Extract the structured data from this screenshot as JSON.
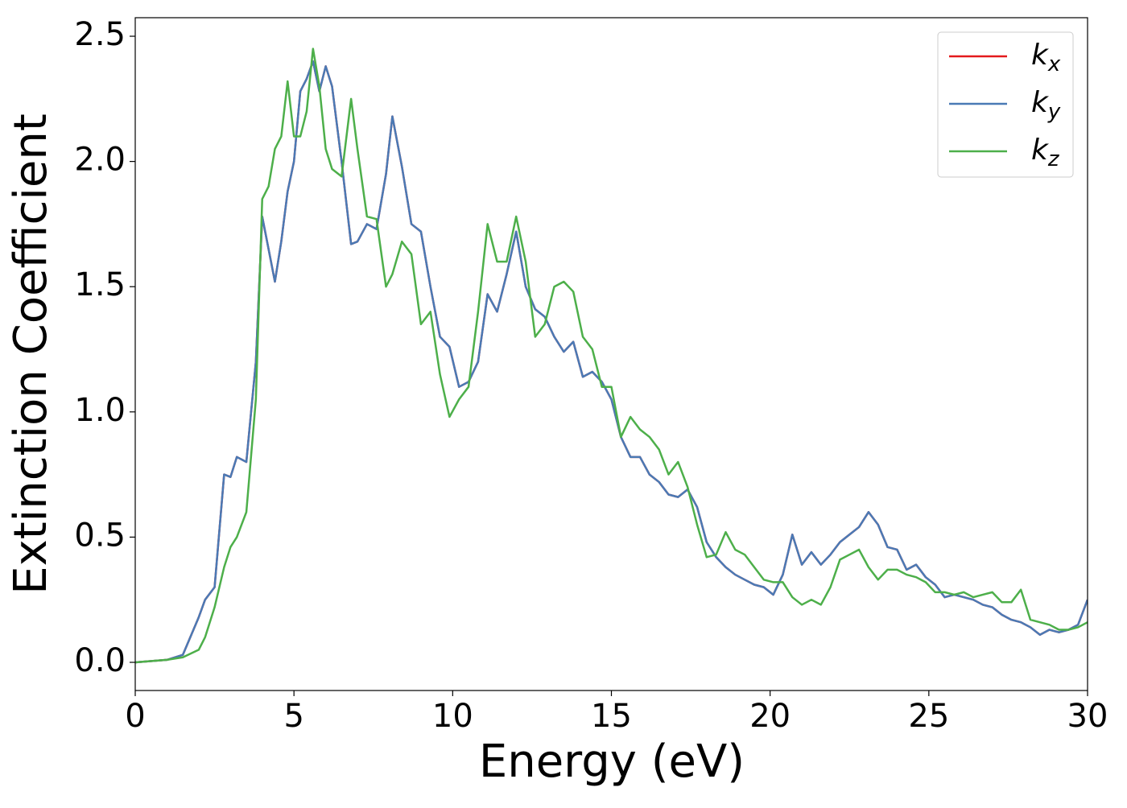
{
  "chart_data": {
    "type": "line",
    "x_label": "Energy (eV)",
    "y_label": "Extinction Coefficient",
    "x": [
      0,
      1,
      1.5,
      2,
      2.2,
      2.5,
      2.8,
      3,
      3.2,
      3.5,
      3.8,
      4,
      4.2,
      4.4,
      4.6,
      4.8,
      5,
      5.2,
      5.4,
      5.6,
      5.8,
      6,
      6.2,
      6.5,
      6.8,
      7,
      7.3,
      7.6,
      7.9,
      8.1,
      8.4,
      8.7,
      9,
      9.3,
      9.6,
      9.9,
      10.2,
      10.5,
      10.8,
      11.1,
      11.4,
      11.7,
      12,
      12.3,
      12.6,
      12.9,
      13.2,
      13.5,
      13.8,
      14.1,
      14.4,
      14.7,
      15,
      15.3,
      15.6,
      15.9,
      16.2,
      16.5,
      16.8,
      17.1,
      17.4,
      17.7,
      18,
      18.3,
      18.6,
      18.9,
      19.2,
      19.5,
      19.8,
      20.1,
      20.4,
      20.7,
      21,
      21.3,
      21.6,
      21.9,
      22.2,
      22.5,
      22.8,
      23.1,
      23.4,
      23.7,
      24,
      24.3,
      24.6,
      24.9,
      25.2,
      25.5,
      25.8,
      26.1,
      26.4,
      26.7,
      27,
      27.3,
      27.6,
      27.9,
      28.2,
      28.5,
      28.8,
      29.1,
      29.4,
      29.7,
      30
    ],
    "series": [
      {
        "name": "kx",
        "color": "#e41a1c",
        "values": [
          0,
          0.01,
          0.03,
          0.18,
          0.25,
          0.3,
          0.75,
          0.74,
          0.82,
          0.8,
          1.2,
          1.78,
          1.65,
          1.52,
          1.68,
          1.88,
          2.0,
          2.28,
          2.33,
          2.4,
          2.28,
          2.38,
          2.3,
          2.0,
          1.67,
          1.68,
          1.75,
          1.73,
          1.95,
          2.18,
          1.98,
          1.75,
          1.72,
          1.5,
          1.3,
          1.26,
          1.1,
          1.12,
          1.2,
          1.47,
          1.4,
          1.55,
          1.72,
          1.5,
          1.41,
          1.38,
          1.3,
          1.24,
          1.28,
          1.14,
          1.16,
          1.12,
          1.05,
          0.9,
          0.82,
          0.82,
          0.75,
          0.72,
          0.67,
          0.66,
          0.69,
          0.62,
          0.48,
          0.42,
          0.38,
          0.35,
          0.33,
          0.31,
          0.3,
          0.27,
          0.35,
          0.51,
          0.39,
          0.44,
          0.39,
          0.43,
          0.48,
          0.51,
          0.54,
          0.6,
          0.55,
          0.46,
          0.45,
          0.37,
          0.39,
          0.34,
          0.31,
          0.26,
          0.27,
          0.26,
          0.25,
          0.23,
          0.22,
          0.19,
          0.17,
          0.16,
          0.14,
          0.11,
          0.13,
          0.12,
          0.13,
          0.15,
          0.25
        ]
      },
      {
        "name": "ky",
        "color": "#4a7ab5",
        "values": [
          0,
          0.01,
          0.03,
          0.18,
          0.25,
          0.3,
          0.75,
          0.74,
          0.82,
          0.8,
          1.2,
          1.78,
          1.65,
          1.52,
          1.68,
          1.88,
          2.0,
          2.28,
          2.33,
          2.4,
          2.28,
          2.38,
          2.3,
          2.0,
          1.67,
          1.68,
          1.75,
          1.73,
          1.95,
          2.18,
          1.98,
          1.75,
          1.72,
          1.5,
          1.3,
          1.26,
          1.1,
          1.12,
          1.2,
          1.47,
          1.4,
          1.55,
          1.72,
          1.5,
          1.41,
          1.38,
          1.3,
          1.24,
          1.28,
          1.14,
          1.16,
          1.12,
          1.05,
          0.9,
          0.82,
          0.82,
          0.75,
          0.72,
          0.67,
          0.66,
          0.69,
          0.62,
          0.48,
          0.42,
          0.38,
          0.35,
          0.33,
          0.31,
          0.3,
          0.27,
          0.35,
          0.51,
          0.39,
          0.44,
          0.39,
          0.43,
          0.48,
          0.51,
          0.54,
          0.6,
          0.55,
          0.46,
          0.45,
          0.37,
          0.39,
          0.34,
          0.31,
          0.26,
          0.27,
          0.26,
          0.25,
          0.23,
          0.22,
          0.19,
          0.17,
          0.16,
          0.14,
          0.11,
          0.13,
          0.12,
          0.13,
          0.15,
          0.25
        ]
      },
      {
        "name": "kz",
        "color": "#4daf4a",
        "values": [
          0,
          0.01,
          0.02,
          0.05,
          0.1,
          0.22,
          0.38,
          0.46,
          0.5,
          0.6,
          1.05,
          1.85,
          1.9,
          2.05,
          2.1,
          2.32,
          2.1,
          2.1,
          2.2,
          2.45,
          2.3,
          2.05,
          1.97,
          1.94,
          2.25,
          2.05,
          1.78,
          1.77,
          1.5,
          1.55,
          1.68,
          1.63,
          1.35,
          1.4,
          1.15,
          0.98,
          1.05,
          1.1,
          1.4,
          1.75,
          1.6,
          1.6,
          1.78,
          1.6,
          1.3,
          1.35,
          1.5,
          1.52,
          1.48,
          1.3,
          1.25,
          1.1,
          1.1,
          0.9,
          0.98,
          0.93,
          0.9,
          0.85,
          0.75,
          0.8,
          0.7,
          0.55,
          0.42,
          0.43,
          0.52,
          0.45,
          0.43,
          0.38,
          0.33,
          0.32,
          0.32,
          0.26,
          0.23,
          0.25,
          0.23,
          0.3,
          0.41,
          0.43,
          0.45,
          0.38,
          0.33,
          0.37,
          0.37,
          0.35,
          0.34,
          0.32,
          0.28,
          0.28,
          0.27,
          0.28,
          0.26,
          0.27,
          0.28,
          0.24,
          0.24,
          0.29,
          0.17,
          0.16,
          0.15,
          0.13,
          0.13,
          0.14,
          0.16
        ]
      }
    ],
    "xlim": [
      0,
      30
    ],
    "xticks": [
      0,
      5,
      10,
      15,
      20,
      25,
      30
    ],
    "ylim": [
      -0.1125,
      2.574
    ],
    "yticks": [
      {
        "value": 0,
        "label": "0.0"
      },
      0.5,
      {
        "value": 1,
        "label": "1.0"
      },
      1.5,
      {
        "value": 2,
        "label": "2.0"
      },
      2.5
    ],
    "legend": "upper right"
  }
}
